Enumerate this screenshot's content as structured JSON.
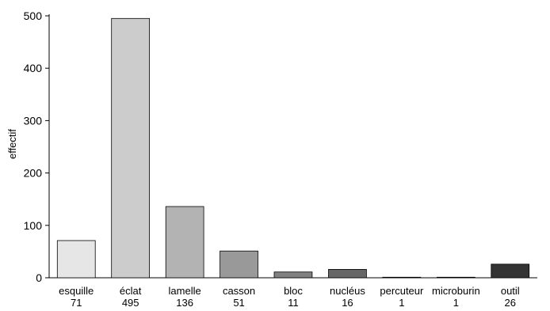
{
  "chart_data": {
    "type": "bar",
    "title": "",
    "xlabel": "",
    "ylabel": "effectif",
    "ylim": [
      0,
      500
    ],
    "yticks": [
      0,
      100,
      200,
      300,
      400,
      500
    ],
    "grid": false,
    "categories": [
      "esquille",
      "éclat",
      "lamelle",
      "casson",
      "bloc",
      "nucléus",
      "percuteur",
      "microburin",
      "outil"
    ],
    "values": [
      71,
      495,
      136,
      51,
      11,
      16,
      1,
      1,
      26
    ],
    "value_labels": [
      "71",
      "495",
      "136",
      "51",
      "11",
      "16",
      "1",
      "1",
      "26"
    ],
    "colors": [
      "#e6e6e6",
      "#cccccc",
      "#b3b3b3",
      "#999999",
      "#808080",
      "#666666",
      "#4d4d4d",
      "#333333",
      "#333333"
    ]
  }
}
